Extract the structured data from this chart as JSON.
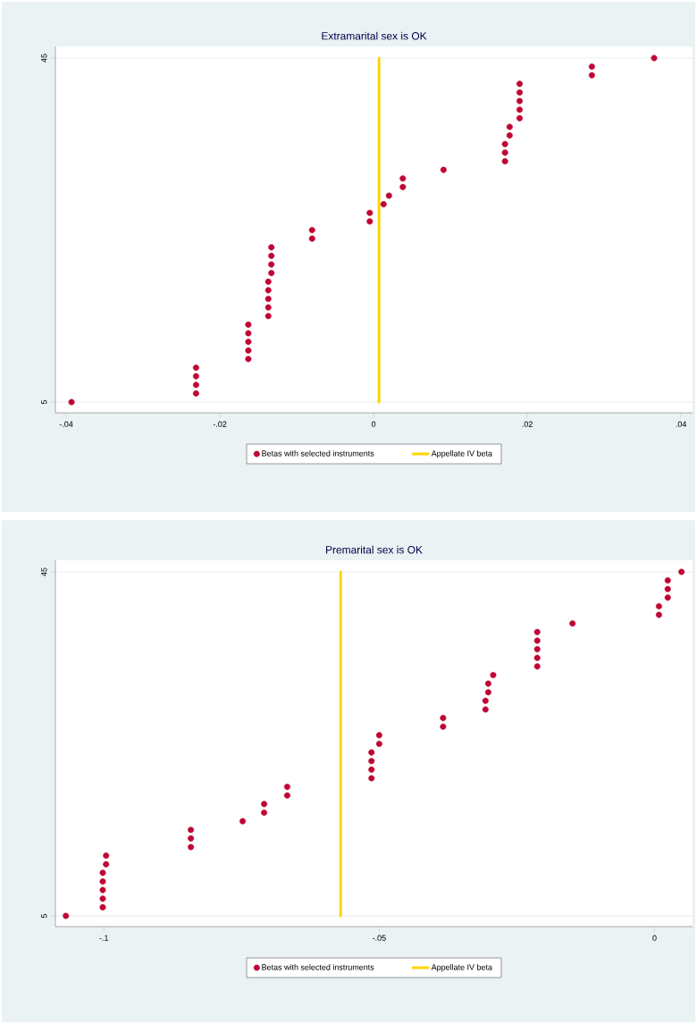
{
  "chart_data": [
    {
      "type": "scatter",
      "title": "Extramarital sex is OK",
      "grid": "y",
      "legend": "bottom",
      "xlim": [
        -0.0414,
        0.0415
      ],
      "ylim": [
        3.75,
        46.35
      ],
      "xticks": [
        {
          "value": -0.04,
          "label": "-.04"
        },
        {
          "value": -0.02,
          "label": "-.02"
        },
        0,
        {
          "value": 0.02,
          "label": ".02"
        },
        {
          "value": 0.04,
          "label": ".04"
        }
      ],
      "yticks": [
        5,
        45
      ],
      "series": [
        {
          "name": "Betas with selected instruments",
          "color": "#c00535",
          "x": [
            -0.0393,
            -0.0231,
            -0.0231,
            -0.0231,
            -0.0231,
            -0.0163,
            -0.0163,
            -0.0163,
            -0.0163,
            -0.0163,
            -0.0137,
            -0.0137,
            -0.0137,
            -0.0137,
            -0.0137,
            -0.0133,
            -0.0133,
            -0.0133,
            -0.0133,
            -0.008,
            -0.008,
            -0.0005,
            -0.0005,
            0.0013,
            0.002,
            0.0038,
            0.0038,
            0.0091,
            0.0171,
            0.0171,
            0.0171,
            0.0177,
            0.0177,
            0.019,
            0.019,
            0.019,
            0.019,
            0.019,
            0.0284,
            0.0284,
            0.0365
          ],
          "values": [
            5,
            6,
            7,
            8,
            9,
            10,
            11,
            12,
            13,
            14,
            15,
            16,
            17,
            18,
            19,
            20,
            21,
            22,
            23,
            24,
            25,
            26,
            27,
            28,
            29,
            30,
            31,
            32,
            33,
            34,
            35,
            36,
            37,
            38,
            39,
            40,
            41,
            42,
            43,
            44,
            45
          ]
        }
      ],
      "ref_lines": [
        {
          "axis": "x",
          "value": 0.0007,
          "label": "Appellate IV beta",
          "color": "#ffd400"
        }
      ]
    },
    {
      "type": "scatter",
      "title": "Premarital sex is OK",
      "grid": "y",
      "legend": "bottom",
      "xlim": [
        -0.1088,
        0.0069
      ],
      "ylim": [
        3.75,
        46.35
      ],
      "xticks": [
        {
          "value": -0.1,
          "label": "-.1"
        },
        {
          "value": -0.05,
          "label": "-.05"
        },
        0
      ],
      "yticks": [
        5,
        45
      ],
      "series": [
        {
          "name": "Betas with selected instruments",
          "color": "#c00535",
          "x": [
            -0.1069,
            -0.1002,
            -0.1002,
            -0.1002,
            -0.1002,
            -0.1002,
            -0.0996,
            -0.0996,
            -0.0842,
            -0.0842,
            -0.0842,
            -0.0748,
            -0.0709,
            -0.0709,
            -0.0667,
            -0.0667,
            -0.0514,
            -0.0514,
            -0.0514,
            -0.0514,
            -0.05,
            -0.05,
            -0.0384,
            -0.0384,
            -0.0307,
            -0.0307,
            -0.0302,
            -0.0302,
            -0.0293,
            -0.0213,
            -0.0213,
            -0.0213,
            -0.0213,
            -0.0213,
            -0.0149,
            0.0008,
            0.0008,
            0.0024,
            0.0024,
            0.0024,
            0.0049
          ],
          "values": [
            5,
            6,
            7,
            8,
            9,
            10,
            11,
            12,
            13,
            14,
            15,
            16,
            17,
            18,
            19,
            20,
            21,
            22,
            23,
            24,
            25,
            26,
            27,
            28,
            29,
            30,
            31,
            32,
            33,
            34,
            35,
            36,
            37,
            38,
            39,
            40,
            41,
            42,
            43,
            44,
            45
          ]
        }
      ],
      "ref_lines": [
        {
          "axis": "x",
          "value": -0.057,
          "label": "Appellate IV beta",
          "color": "#ffd400"
        }
      ]
    }
  ]
}
